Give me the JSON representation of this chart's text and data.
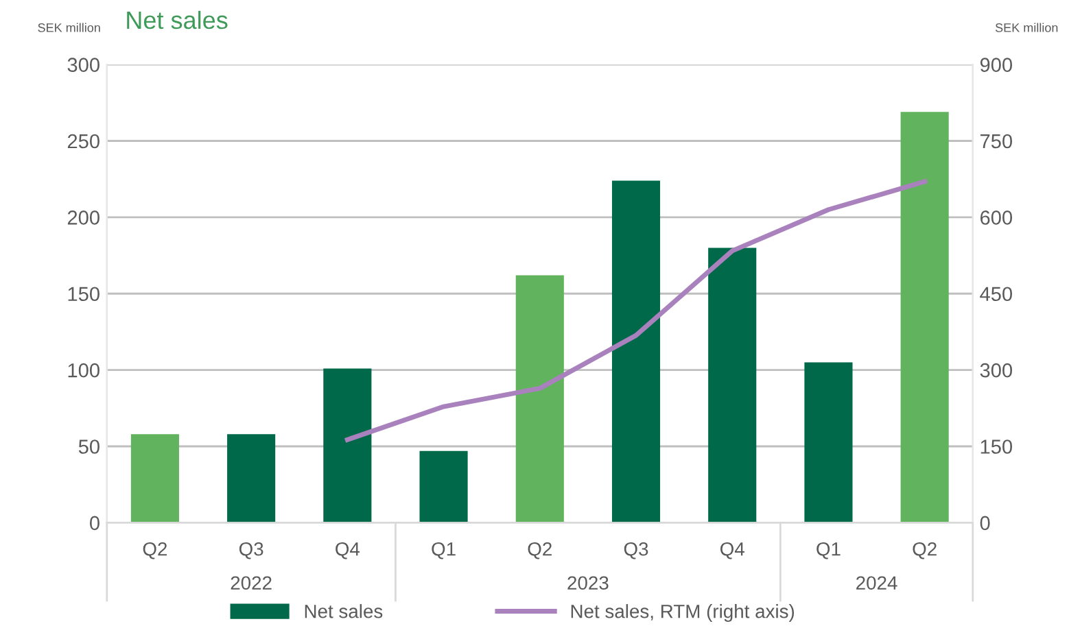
{
  "chart_data": {
    "type": "bar",
    "title": "Net sales",
    "ylabel": "SEK million",
    "y2label": "SEK million",
    "categories": [
      "Q2",
      "Q3",
      "Q4",
      "Q1",
      "Q2",
      "Q3",
      "Q4",
      "Q1",
      "Q2"
    ],
    "series": [
      {
        "name": "Net sales",
        "color": "#00694a",
        "colors": [
          "#62b35e",
          "#00694a",
          "#00694a",
          "#00694a",
          "#62b35e",
          "#00694a",
          "#00694a",
          "#00694a",
          "#62b35e"
        ],
        "values": [
          58,
          58,
          101,
          47,
          162,
          224,
          180,
          105,
          269
        ]
      },
      {
        "name": "Net sales, RTM (right axis)",
        "type": "line",
        "axis": "y2",
        "color": "#a981bd",
        "values": [
          null,
          null,
          163,
          228,
          264,
          368,
          534,
          615,
          670
        ]
      }
    ],
    "annotations": [
      "2022",
      "2023",
      "2024"
    ],
    "ylim": [
      0,
      300
    ],
    "yticks": [
      0,
      50,
      100,
      150,
      200,
      250,
      300
    ],
    "y2lim": [
      0,
      900
    ],
    "y2ticks": [
      0,
      150,
      300,
      450,
      600,
      750,
      900
    ],
    "grid": "y",
    "legend": "bottom"
  }
}
